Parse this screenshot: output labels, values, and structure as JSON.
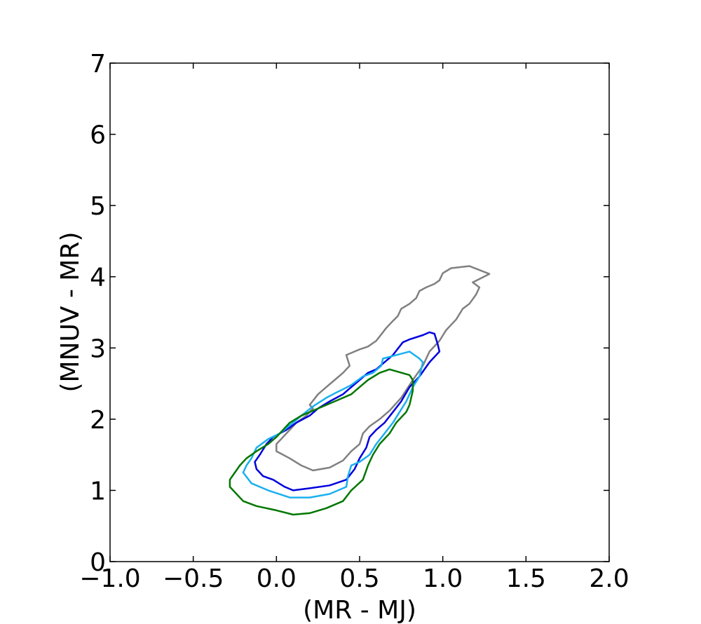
{
  "chart_data": {
    "type": "line",
    "title": "",
    "xlabel": "(MR - MJ)",
    "ylabel": "(MNUV - MR)",
    "xlim": [
      -1.0,
      2.0
    ],
    "ylim": [
      0,
      7
    ],
    "xticks": [
      "−1.0",
      "−0.5",
      "0.0",
      "0.5",
      "1.0",
      "1.5",
      "2.0"
    ],
    "yticks": [
      "0",
      "1",
      "2",
      "3",
      "4",
      "5",
      "6",
      "7"
    ],
    "xtick_values": [
      -1.0,
      -0.5,
      0.0,
      0.5,
      1.0,
      1.5,
      2.0
    ],
    "ytick_values": [
      0,
      1,
      2,
      3,
      4,
      5,
      6,
      7
    ],
    "grid": false,
    "series": [
      {
        "color": "#808080",
        "closed": true,
        "points": [
          [
            0.0,
            1.55
          ],
          [
            0.08,
            1.45
          ],
          [
            0.15,
            1.35
          ],
          [
            0.22,
            1.28
          ],
          [
            0.32,
            1.32
          ],
          [
            0.4,
            1.42
          ],
          [
            0.45,
            1.55
          ],
          [
            0.5,
            1.65
          ],
          [
            0.52,
            1.8
          ],
          [
            0.56,
            1.9
          ],
          [
            0.62,
            2.0
          ],
          [
            0.68,
            2.12
          ],
          [
            0.75,
            2.3
          ],
          [
            0.82,
            2.55
          ],
          [
            0.88,
            2.75
          ],
          [
            0.92,
            2.95
          ],
          [
            0.98,
            3.1
          ],
          [
            1.02,
            3.25
          ],
          [
            1.08,
            3.4
          ],
          [
            1.12,
            3.55
          ],
          [
            1.16,
            3.62
          ],
          [
            1.2,
            3.75
          ],
          [
            1.22,
            3.85
          ],
          [
            1.18,
            3.92
          ],
          [
            1.28,
            4.04
          ],
          [
            1.16,
            4.15
          ],
          [
            1.05,
            4.12
          ],
          [
            1.0,
            4.05
          ],
          [
            0.98,
            3.95
          ],
          [
            0.95,
            3.9
          ],
          [
            0.9,
            3.85
          ],
          [
            0.86,
            3.8
          ],
          [
            0.84,
            3.7
          ],
          [
            0.8,
            3.62
          ],
          [
            0.75,
            3.55
          ],
          [
            0.73,
            3.45
          ],
          [
            0.7,
            3.38
          ],
          [
            0.66,
            3.28
          ],
          [
            0.6,
            3.1
          ],
          [
            0.55,
            3.02
          ],
          [
            0.5,
            2.98
          ],
          [
            0.45,
            2.93
          ],
          [
            0.42,
            2.9
          ],
          [
            0.44,
            2.75
          ],
          [
            0.4,
            2.65
          ],
          [
            0.35,
            2.55
          ],
          [
            0.3,
            2.45
          ],
          [
            0.25,
            2.35
          ],
          [
            0.2,
            2.2
          ],
          [
            0.22,
            2.15
          ],
          [
            0.18,
            2.05
          ],
          [
            0.12,
            1.95
          ],
          [
            0.08,
            1.85
          ],
          [
            0.04,
            1.75
          ],
          [
            0.0,
            1.65
          ],
          [
            0.0,
            1.55
          ]
        ]
      },
      {
        "color": "#0000dd",
        "closed": true,
        "points": [
          [
            -0.12,
            1.3
          ],
          [
            -0.08,
            1.2
          ],
          [
            -0.02,
            1.15
          ],
          [
            0.05,
            1.05
          ],
          [
            0.1,
            1.0
          ],
          [
            0.2,
            1.03
          ],
          [
            0.32,
            1.07
          ],
          [
            0.42,
            1.15
          ],
          [
            0.47,
            1.3
          ],
          [
            0.5,
            1.45
          ],
          [
            0.54,
            1.6
          ],
          [
            0.56,
            1.75
          ],
          [
            0.6,
            1.85
          ],
          [
            0.65,
            1.95
          ],
          [
            0.7,
            2.1
          ],
          [
            0.75,
            2.25
          ],
          [
            0.8,
            2.45
          ],
          [
            0.86,
            2.6
          ],
          [
            0.92,
            2.8
          ],
          [
            0.98,
            2.95
          ],
          [
            0.97,
            3.05
          ],
          [
            0.95,
            3.2
          ],
          [
            0.92,
            3.22
          ],
          [
            0.88,
            3.18
          ],
          [
            0.8,
            3.12
          ],
          [
            0.76,
            3.08
          ],
          [
            0.7,
            2.9
          ],
          [
            0.65,
            2.8
          ],
          [
            0.6,
            2.7
          ],
          [
            0.55,
            2.65
          ],
          [
            0.5,
            2.55
          ],
          [
            0.45,
            2.45
          ],
          [
            0.4,
            2.35
          ],
          [
            0.32,
            2.25
          ],
          [
            0.25,
            2.15
          ],
          [
            0.2,
            2.05
          ],
          [
            0.12,
            1.95
          ],
          [
            0.06,
            1.85
          ],
          [
            0.02,
            1.8
          ],
          [
            -0.02,
            1.75
          ],
          [
            -0.06,
            1.65
          ],
          [
            -0.1,
            1.5
          ],
          [
            -0.13,
            1.4
          ],
          [
            -0.12,
            1.3
          ]
        ]
      },
      {
        "color": "#1ab0f0",
        "closed": true,
        "points": [
          [
            -0.2,
            1.25
          ],
          [
            -0.15,
            1.1
          ],
          [
            -0.05,
            1.0
          ],
          [
            0.08,
            0.9
          ],
          [
            0.2,
            0.9
          ],
          [
            0.32,
            0.95
          ],
          [
            0.42,
            1.05
          ],
          [
            0.43,
            1.2
          ],
          [
            0.45,
            1.35
          ],
          [
            0.5,
            1.4
          ],
          [
            0.56,
            1.5
          ],
          [
            0.6,
            1.65
          ],
          [
            0.65,
            1.8
          ],
          [
            0.7,
            1.95
          ],
          [
            0.74,
            2.1
          ],
          [
            0.78,
            2.25
          ],
          [
            0.82,
            2.45
          ],
          [
            0.86,
            2.6
          ],
          [
            0.88,
            2.8
          ],
          [
            0.86,
            2.85
          ],
          [
            0.8,
            2.95
          ],
          [
            0.72,
            2.9
          ],
          [
            0.64,
            2.85
          ],
          [
            0.63,
            2.75
          ],
          [
            0.58,
            2.65
          ],
          [
            0.52,
            2.6
          ],
          [
            0.45,
            2.48
          ],
          [
            0.4,
            2.42
          ],
          [
            0.34,
            2.35
          ],
          [
            0.3,
            2.3
          ],
          [
            0.22,
            2.18
          ],
          [
            0.15,
            2.05
          ],
          [
            0.1,
            1.95
          ],
          [
            0.02,
            1.8
          ],
          [
            -0.05,
            1.72
          ],
          [
            -0.12,
            1.6
          ],
          [
            -0.15,
            1.45
          ],
          [
            -0.18,
            1.35
          ],
          [
            -0.2,
            1.25
          ]
        ]
      },
      {
        "color": "#007700",
        "closed": true,
        "points": [
          [
            -0.28,
            1.05
          ],
          [
            -0.2,
            0.85
          ],
          [
            -0.12,
            0.78
          ],
          [
            0.0,
            0.72
          ],
          [
            0.1,
            0.66
          ],
          [
            0.2,
            0.68
          ],
          [
            0.3,
            0.75
          ],
          [
            0.4,
            0.85
          ],
          [
            0.45,
            1.0
          ],
          [
            0.52,
            1.15
          ],
          [
            0.55,
            1.35
          ],
          [
            0.58,
            1.5
          ],
          [
            0.62,
            1.65
          ],
          [
            0.68,
            1.8
          ],
          [
            0.72,
            1.95
          ],
          [
            0.78,
            2.1
          ],
          [
            0.8,
            2.2
          ],
          [
            0.82,
            2.4
          ],
          [
            0.82,
            2.55
          ],
          [
            0.8,
            2.62
          ],
          [
            0.68,
            2.7
          ],
          [
            0.62,
            2.65
          ],
          [
            0.55,
            2.55
          ],
          [
            0.5,
            2.45
          ],
          [
            0.45,
            2.35
          ],
          [
            0.35,
            2.25
          ],
          [
            0.25,
            2.15
          ],
          [
            0.15,
            2.05
          ],
          [
            0.08,
            1.95
          ],
          [
            0.04,
            1.85
          ],
          [
            0.0,
            1.75
          ],
          [
            -0.05,
            1.65
          ],
          [
            -0.12,
            1.55
          ],
          [
            -0.18,
            1.45
          ],
          [
            -0.22,
            1.35
          ],
          [
            -0.25,
            1.25
          ],
          [
            -0.28,
            1.15
          ],
          [
            -0.28,
            1.05
          ]
        ]
      }
    ]
  }
}
